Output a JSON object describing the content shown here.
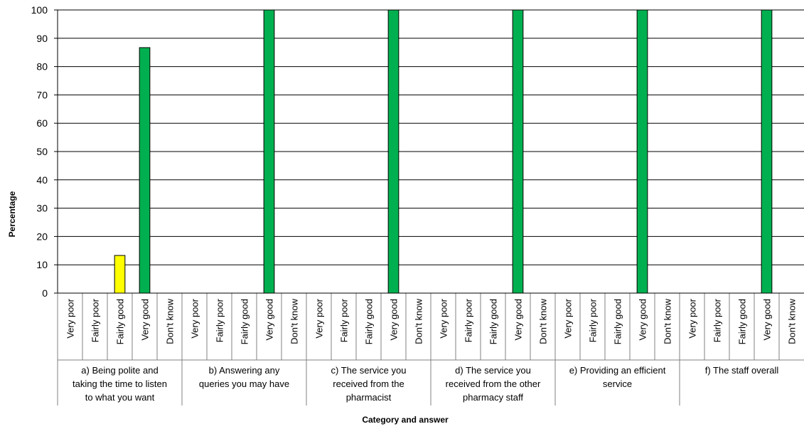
{
  "chart_data": {
    "type": "bar",
    "ylabel": "Percentage",
    "xlabel": "Category and answer",
    "ylim": [
      0,
      100
    ],
    "yticks": [
      0,
      10,
      20,
      30,
      40,
      50,
      60,
      70,
      80,
      90,
      100
    ],
    "grid": true,
    "answers": [
      "Very poor",
      "Fairly poor",
      "Fairly good",
      "Very good",
      "Don't know"
    ],
    "answer_colors": {
      "Very poor": "#ff0000",
      "Fairly poor": "#ffc000",
      "Fairly good": "#ffff00",
      "Very good": "#00b050",
      "Don't know": "#bfbfbf"
    },
    "groups": [
      {
        "label_lines": [
          "a) Being polite and",
          "taking the time to listen",
          "to what you want"
        ],
        "values": [
          0,
          0,
          13.3,
          86.7,
          0
        ]
      },
      {
        "label_lines": [
          "b) Answering any",
          "queries you may have"
        ],
        "values": [
          0,
          0,
          0,
          100,
          0
        ]
      },
      {
        "label_lines": [
          "c) The service you",
          "received from the",
          "pharmacist"
        ],
        "values": [
          0,
          0,
          0,
          100,
          0
        ]
      },
      {
        "label_lines": [
          "d) The service you",
          "received from the other",
          "pharmacy staff"
        ],
        "values": [
          0,
          0,
          0,
          100,
          0
        ]
      },
      {
        "label_lines": [
          "e) Providing an efficient",
          "service"
        ],
        "values": [
          0,
          0,
          0,
          100,
          0
        ]
      },
      {
        "label_lines": [
          "f) The staff overall"
        ],
        "values": [
          0,
          0,
          0,
          100,
          0
        ]
      }
    ]
  }
}
